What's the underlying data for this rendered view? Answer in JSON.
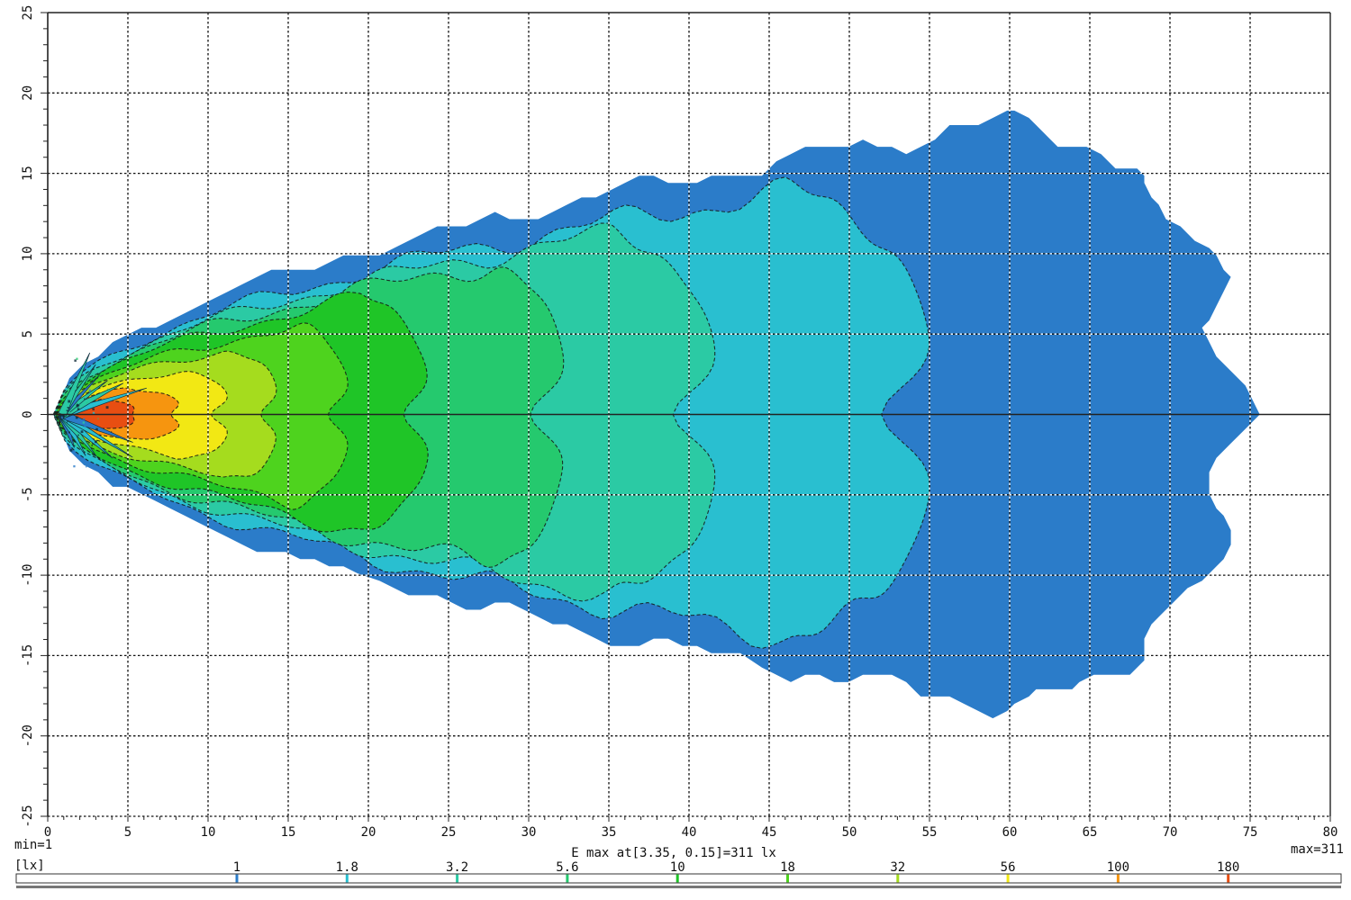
{
  "annotations": {
    "min_label": "min=1",
    "unit_label": "[lx]",
    "emax_label": "E max at[3.35, 0.15]=311 lx",
    "max_label": "max=311"
  },
  "chart_data": {
    "type": "heatmap",
    "variant": "isolux_contour_plot",
    "unit": "lx",
    "min_lux": 1,
    "max_lux": 311,
    "e_max": {
      "x": 3.35,
      "y": 0.15,
      "lux": 311
    },
    "x_axis": {
      "min": 0,
      "max": 80,
      "tick_step": 5,
      "minor_tick_step": 1,
      "tick_labels": [
        "0",
        "5",
        "10",
        "15",
        "20",
        "25",
        "30",
        "35",
        "40",
        "45",
        "50",
        "55",
        "60",
        "65",
        "70",
        "75",
        "80"
      ]
    },
    "y_axis": {
      "min": -25,
      "max": 25,
      "tick_step": 5,
      "minor_tick_step": 1,
      "tick_labels": [
        "25",
        "20",
        "15",
        "10",
        "5",
        "0",
        "-5",
        "-10",
        "-15",
        "-20",
        "-25"
      ]
    },
    "grid": {
      "spacing": 5,
      "style": "dotted"
    },
    "zero_line": true,
    "levels": [
      {
        "lux": 1,
        "color": "#2B7CC9",
        "x_tip": 0.3,
        "x_end": 74.0,
        "y_half": 18.0,
        "x_widest": 59.0
      },
      {
        "lux": 1.8,
        "color": "#29BFD0",
        "x_tip": 0.35,
        "x_end": 55.5,
        "y_half": 13.8,
        "x_widest": 46.0
      },
      {
        "lux": 3.2,
        "color": "#2BCAA4",
        "x_tip": 0.4,
        "x_end": 42.0,
        "y_half": 11.2,
        "x_widest": 35.0
      },
      {
        "lux": 5.6,
        "color": "#25C96E",
        "x_tip": 0.45,
        "x_end": 32.5,
        "y_half": 9.2,
        "x_widest": 27.0
      },
      {
        "lux": 10,
        "color": "#1FC527",
        "x_tip": 0.5,
        "x_end": 24.0,
        "y_half": 7.2,
        "x_widest": 19.5
      },
      {
        "lux": 18,
        "color": "#4ED31E",
        "x_tip": 0.55,
        "x_end": 19.0,
        "y_half": 5.4,
        "x_widest": 15.0
      },
      {
        "lux": 32,
        "color": "#A5DC1E",
        "x_tip": 0.6,
        "x_end": 14.5,
        "y_half": 4.0,
        "x_widest": 11.0
      },
      {
        "lux": 56,
        "color": "#F2E814",
        "x_tip": 0.7,
        "x_end": 11.5,
        "y_half": 2.75,
        "x_widest": 8.0
      },
      {
        "lux": 100,
        "color": "#F6950F",
        "x_tip": 0.9,
        "x_end": 8.6,
        "y_half": 1.65,
        "x_widest": 4.8
      },
      {
        "lux": 180,
        "color": "#E84E12",
        "x_tip": 1.6,
        "x_end": 5.7,
        "y_half": 0.95,
        "x_widest": 3.4
      }
    ],
    "legend": {
      "tick_labels": [
        "1",
        "1.8",
        "3.2",
        "5.6",
        "10",
        "18",
        "32",
        "56",
        "100",
        "180"
      ],
      "unit": "lx",
      "position": "bottom"
    }
  }
}
